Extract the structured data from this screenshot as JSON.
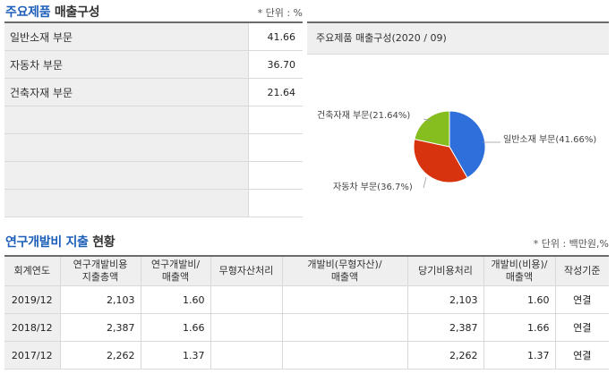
{
  "product_section": {
    "title_main": "주요제품",
    "title_sub": " 매출구성",
    "unit": "* 단위 : %",
    "rows": [
      {
        "name": "일반소재 부문",
        "value": "41.66"
      },
      {
        "name": "자동차 부문",
        "value": "36.70"
      },
      {
        "name": "건축자재 부문",
        "value": "21.64"
      }
    ],
    "empty_rows": 4
  },
  "chart_title": "주요제품 매출구성(2020 / 09)",
  "chart_data": {
    "type": "pie",
    "title": "주요제품 매출구성(2020 / 09)",
    "slices": [
      {
        "label": "일반소재 부문(41.66%)",
        "value": 41.66,
        "color": "#2f6fdc"
      },
      {
        "label": "자동차 부문(36.7%)",
        "value": 36.7,
        "color": "#d8330f"
      },
      {
        "label": "건축자재 부문(21.64%)",
        "value": 21.64,
        "color": "#86bd1f"
      }
    ]
  },
  "rd_section": {
    "title_main": "연구개발비 지출",
    "title_sub": " 현황",
    "unit": "* 단위 : 백만원,%",
    "headers": [
      "회계연도",
      "연구개발비용\n지출총액",
      "연구개발비/\n매출액",
      "무형자산처리",
      "개발비(무형자산)/\n매출액",
      "당기비용처리",
      "개발비(비용)/\n매출액",
      "작성기준"
    ],
    "rows": [
      {
        "year": "2019/12",
        "total": "2,103",
        "ratio": "1.60",
        "intangible": "",
        "intangible_ratio": "",
        "expense": "2,103",
        "expense_ratio": "1.60",
        "basis": "연결"
      },
      {
        "year": "2018/12",
        "total": "2,387",
        "ratio": "1.66",
        "intangible": "",
        "intangible_ratio": "",
        "expense": "2,387",
        "expense_ratio": "1.66",
        "basis": "연결"
      },
      {
        "year": "2017/12",
        "total": "2,262",
        "ratio": "1.37",
        "intangible": "",
        "intangible_ratio": "",
        "expense": "2,262",
        "expense_ratio": "1.37",
        "basis": "연결"
      }
    ]
  }
}
